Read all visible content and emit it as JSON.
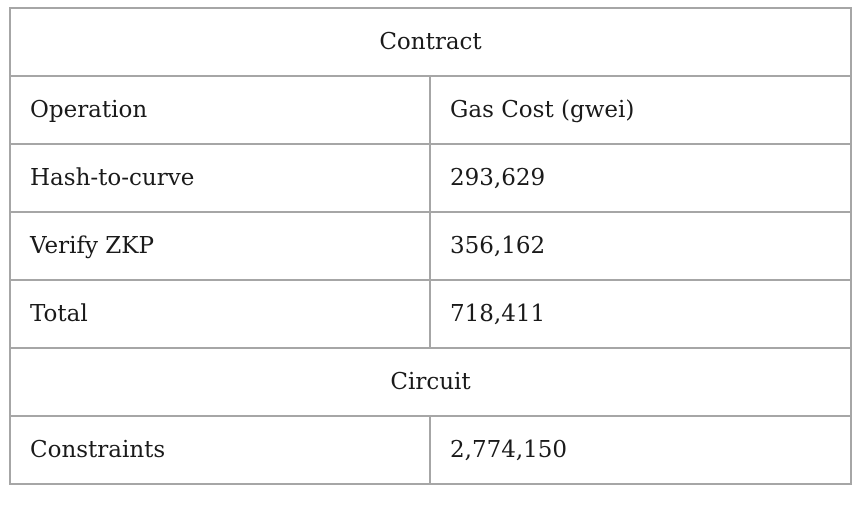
{
  "table": {
    "section_contract": "Contract",
    "header": {
      "operation": "Operation",
      "gas_cost": "Gas Cost (gwei)"
    },
    "contract_rows": [
      {
        "operation": "Hash-to-curve",
        "gas": "293,629"
      },
      {
        "operation": "Verify ZKP",
        "gas": "356,162"
      },
      {
        "operation": "Total",
        "gas": "718,411"
      }
    ],
    "section_circuit": "Circuit",
    "circuit_rows": [
      {
        "label": "Constraints",
        "value": "2,774,150"
      }
    ]
  }
}
